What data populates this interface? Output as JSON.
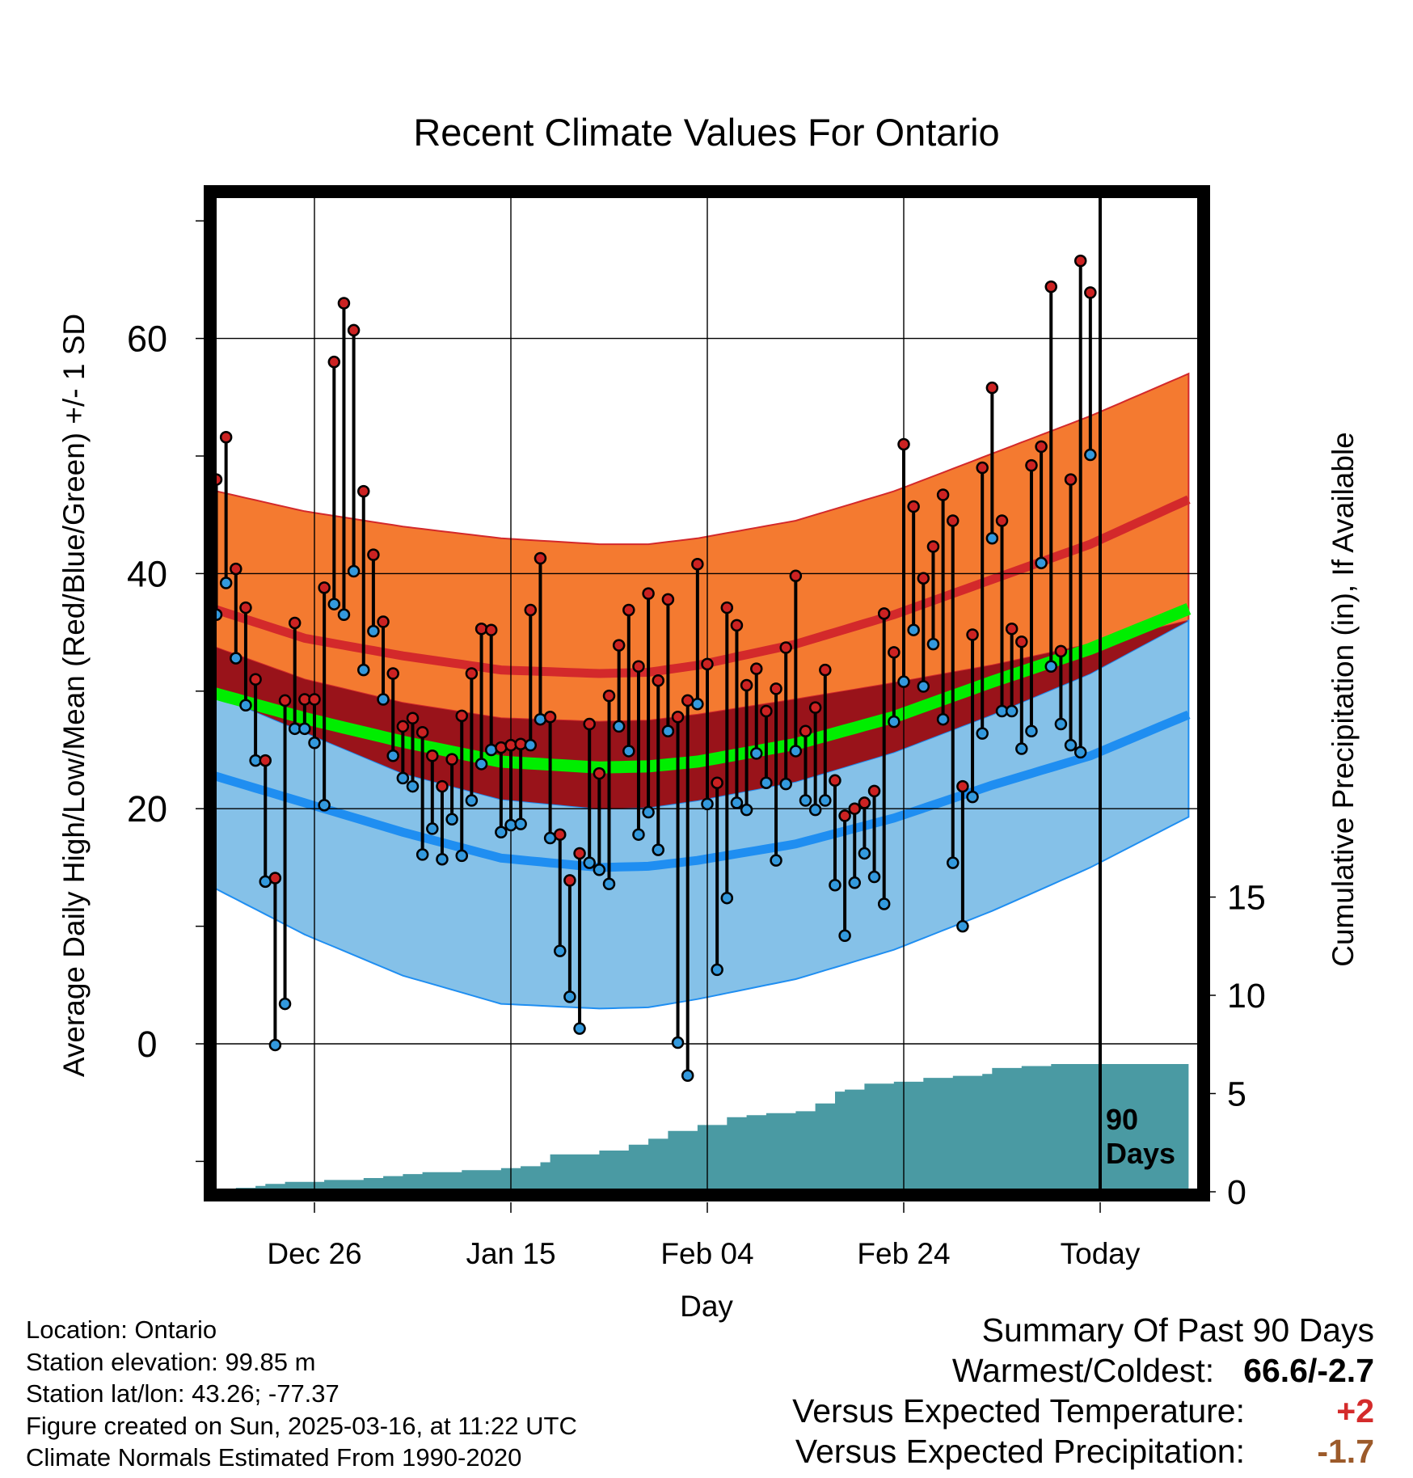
{
  "chart_data": {
    "type": "line",
    "title": "Recent Climate Values For Ontario",
    "xlabel": "Day",
    "ylabel": "Average Daily High/Low/Mean (Red/Blue/Green) +/- 1 SD",
    "y2label": "Cumulative Precipitation (in), If Available",
    "x_ticks": [
      {
        "day": 11,
        "label": "Dec 26"
      },
      {
        "day": 31,
        "label": "Jan 15"
      },
      {
        "day": 51,
        "label": "Feb 04"
      },
      {
        "day": 71,
        "label": "Feb 24"
      },
      {
        "day": 91,
        "label": "Today"
      }
    ],
    "x_range": [
      0,
      100
    ],
    "ylim": [
      -12,
      72
    ],
    "y_ticks": [
      0,
      20,
      40,
      60
    ],
    "y2lim": [
      0,
      30
    ],
    "y2_ticks": [
      0,
      5,
      10,
      15
    ],
    "marker_label": "90\nDays",
    "marker_day": 91,
    "normals_days": [
      0,
      10,
      20,
      30,
      40,
      45,
      50,
      60,
      70,
      80,
      90,
      100
    ],
    "normal_high": [
      37.2,
      34.5,
      33.0,
      31.8,
      31.5,
      31.6,
      32.2,
      34.0,
      36.5,
      39.5,
      42.5,
      46.3
    ],
    "normal_high_plus_sd": [
      47.2,
      45.3,
      44.0,
      43.0,
      42.5,
      42.5,
      43.0,
      44.5,
      47.0,
      50.2,
      53.4,
      57.0
    ],
    "normal_high_minus_sd": [
      34.0,
      31.0,
      29.0,
      27.7,
      27.4,
      27.5,
      28.0,
      29.3,
      30.7,
      32.2,
      34.0,
      36.0
    ],
    "normal_mean": [
      30.0,
      27.7,
      25.7,
      24.0,
      23.5,
      23.6,
      24.0,
      25.5,
      27.8,
      30.8,
      33.6,
      37.0
    ],
    "normal_low": [
      23.0,
      20.5,
      18.0,
      15.8,
      15.0,
      15.1,
      15.6,
      17.0,
      19.2,
      22.0,
      24.5,
      28.0
    ],
    "normal_low_plus_sd": [
      30.0,
      26.5,
      23.0,
      20.8,
      20.0,
      20.1,
      20.7,
      22.3,
      24.8,
      28.0,
      31.5,
      36.0
    ],
    "normal_low_minus_sd": [
      13.6,
      9.3,
      5.8,
      3.4,
      3.0,
      3.1,
      3.8,
      5.5,
      8.0,
      11.3,
      15.0,
      19.3
    ],
    "series": [
      {
        "name": "High",
        "values": [
          48,
          51.6,
          40.4,
          37.1,
          31,
          24.1,
          14.1,
          29.2,
          35.8,
          29.3,
          29.3,
          38.8,
          58,
          63,
          60.7,
          47,
          41.6,
          35.9,
          31.5,
          27,
          27.7,
          26.5,
          24.5,
          21.9,
          24.2,
          27.9,
          31.5,
          35.3,
          35.2,
          25.2,
          25.4,
          25.5,
          36.9,
          41.3,
          27.8,
          17.8,
          13.9,
          16.2,
          27.2,
          23,
          29.6,
          33.9,
          36.9,
          32.1,
          38.3,
          30.9,
          37.8,
          27.8,
          29.2,
          40.8,
          32.3,
          22.2,
          37.1,
          35.6,
          30.5,
          31.9,
          28.3,
          30.2,
          33.7,
          39.8,
          26.6,
          28.6,
          31.8,
          22.4,
          19.4,
          20,
          20.5,
          21.5,
          36.6,
          33.3,
          51,
          45.7,
          39.6,
          42.3,
          46.7,
          44.5,
          21.9,
          34.8,
          49,
          55.8,
          44.5,
          35.3,
          34.2,
          49.2,
          50.8,
          64.4,
          33.4,
          48,
          66.6,
          63.9
        ],
        "color": "#cc2222"
      },
      {
        "name": "Low",
        "values": [
          36.5,
          39.2,
          32.8,
          28.8,
          24.1,
          13.8,
          -0.1,
          3.4,
          26.8,
          26.8,
          25.6,
          20.3,
          37.4,
          36.5,
          40.2,
          31.8,
          35.1,
          29.3,
          24.5,
          22.6,
          21.9,
          16.1,
          18.3,
          15.7,
          19.1,
          16,
          20.7,
          23.8,
          25,
          18,
          18.6,
          18.7,
          25.4,
          27.6,
          17.5,
          7.9,
          4,
          1.3,
          15.4,
          14.8,
          13.6,
          27,
          24.9,
          17.8,
          19.7,
          16.5,
          26.6,
          0.1,
          -2.7,
          28.9,
          20.4,
          6.3,
          12.4,
          20.5,
          19.9,
          24.7,
          22.2,
          15.6,
          22.1,
          24.9,
          20.7,
          19.9,
          20.7,
          13.5,
          9.2,
          13.7,
          16.2,
          14.2,
          11.9,
          27.4,
          30.8,
          35.2,
          30.4,
          34,
          27.6,
          15.4,
          10,
          21,
          26.4,
          43,
          28.3,
          28.3,
          25.1,
          26.6,
          40.9,
          32.1,
          27.2,
          25.4,
          24.8,
          50.1
        ],
        "color": "#3399dd"
      },
      {
        "name": "Cumulative Precipitation",
        "x": [
          0,
          2,
          3,
          5,
          6,
          8,
          10,
          12,
          14,
          16,
          18,
          20,
          22,
          24,
          26,
          28,
          30,
          32,
          34,
          35,
          37,
          40,
          43,
          45,
          47,
          50,
          53,
          55,
          57,
          60,
          62,
          64,
          65,
          67,
          70,
          73,
          76,
          79,
          80,
          83,
          86,
          90,
          93,
          100
        ],
        "values": [
          0,
          0.1,
          0.2,
          0.3,
          0.4,
          0.5,
          0.5,
          0.6,
          0.6,
          0.7,
          0.8,
          0.9,
          1.0,
          1.0,
          1.1,
          1.1,
          1.2,
          1.3,
          1.5,
          1.9,
          1.9,
          2.1,
          2.4,
          2.7,
          3.1,
          3.4,
          3.8,
          3.9,
          4.0,
          4.1,
          4.5,
          5.1,
          5.2,
          5.5,
          5.6,
          5.8,
          5.9,
          6.0,
          6.3,
          6.4,
          6.5,
          6.5,
          6.5,
          6.5
        ],
        "color": "#4a9aa3"
      }
    ]
  },
  "footer": {
    "location": "Location: Ontario",
    "elevation": "Station elevation: 99.85 m",
    "latlon": "Station lat/lon: 43.26; -77.37",
    "created": "Figure created on Sun, 2025-03-16, at 11:22 UTC",
    "normals": "Climate Normals Estimated From 1990-2020"
  },
  "summary": {
    "title": "Summary Of Past 90 Days",
    "warm_label": "Warmest/Coldest:",
    "warm_value": "66.6/-2.7",
    "temp_label": "Versus Expected Temperature:",
    "temp_value": "+2",
    "precip_label": "Versus Expected Precipitation:",
    "precip_value": "-1.7"
  },
  "colors": {
    "high_band": "#f47a30",
    "high_line": "#d3292b",
    "low_band": "#85c1e8",
    "low_line": "#1f8ef1",
    "overlap_band": "#99131a",
    "mean_line": "#00ee00",
    "precip_fill": "#4a9aa3",
    "high_dot": "#cc2222",
    "low_dot": "#3399dd"
  }
}
